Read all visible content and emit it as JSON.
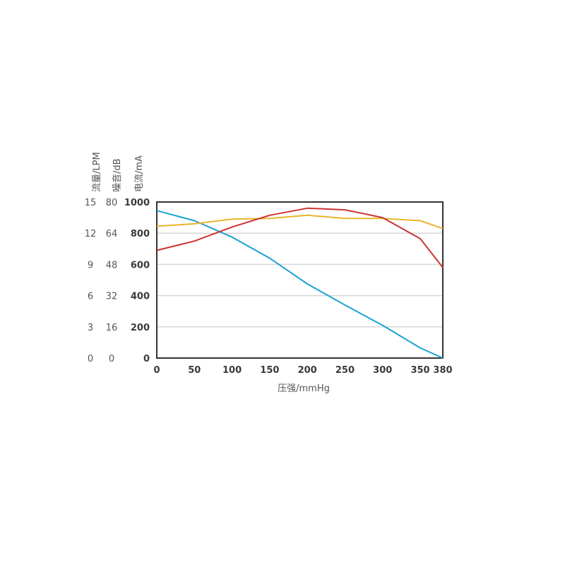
{
  "chart_data": {
    "type": "line",
    "xlabel": "压强/mmHg",
    "x_ticks": [
      "0",
      "50",
      "100",
      "150",
      "200",
      "250",
      "300",
      "350",
      "380"
    ],
    "xlim": [
      0,
      380
    ],
    "y_axes": [
      {
        "label": "流量/LPM",
        "ticks": [
          "0",
          "3",
          "6",
          "9",
          "12",
          "15"
        ],
        "ylim": [
          0,
          15
        ]
      },
      {
        "label": "噪音/dB",
        "ticks": [
          "0",
          "16",
          "32",
          "48",
          "64",
          "80"
        ],
        "ylim": [
          0,
          80
        ]
      },
      {
        "label": "电流/mA",
        "ticks": [
          "0",
          "200",
          "400",
          "600",
          "800",
          "1000"
        ],
        "ylim": [
          0,
          1000
        ]
      }
    ],
    "grid": true,
    "series": [
      {
        "color": "#1aa3d4",
        "axis": "current",
        "x": [
          0,
          50,
          100,
          150,
          200,
          250,
          300,
          350,
          380
        ],
        "y": [
          945,
          880,
          775,
          640,
          475,
          340,
          210,
          65,
          0
        ]
      },
      {
        "color": "#e8b52a",
        "axis": "current",
        "x": [
          0,
          50,
          100,
          150,
          200,
          250,
          300,
          350,
          380
        ],
        "y": [
          845,
          860,
          890,
          895,
          915,
          895,
          895,
          880,
          830
        ]
      },
      {
        "color": "#cc3333",
        "axis": "current",
        "x": [
          0,
          50,
          100,
          150,
          200,
          250,
          300,
          350,
          380
        ],
        "y": [
          690,
          750,
          840,
          915,
          960,
          950,
          900,
          765,
          580
        ]
      }
    ]
  }
}
